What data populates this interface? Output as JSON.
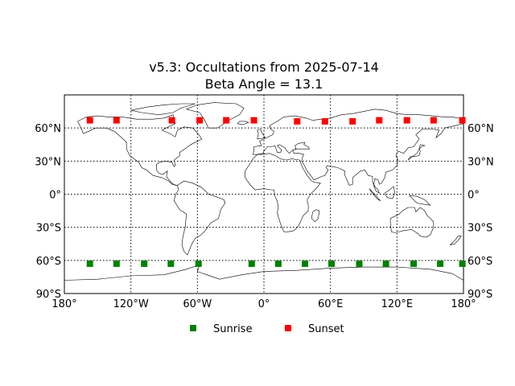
{
  "chart_data": {
    "type": "scatter",
    "title": "v5.3: Occultations from 2025-07-14",
    "subtitle": "Beta Angle = 13.1",
    "xlabel": "",
    "ylabel": "",
    "xlim": [
      -180,
      180
    ],
    "ylim": [
      -90,
      90
    ],
    "grid": true,
    "legend_position": "bottom-center",
    "map_projection": "equirectangular",
    "x_ticks": [
      {
        "value": -180,
        "label": "180°"
      },
      {
        "value": -120,
        "label": "120°W"
      },
      {
        "value": -60,
        "label": "60°W"
      },
      {
        "value": 0,
        "label": "0°"
      },
      {
        "value": 60,
        "label": "60°E"
      },
      {
        "value": 120,
        "label": "120°E"
      },
      {
        "value": 180,
        "label": "180°"
      }
    ],
    "y_ticks": [
      {
        "value": 60,
        "label": "60°N"
      },
      {
        "value": 30,
        "label": "30°N"
      },
      {
        "value": 0,
        "label": "0°"
      },
      {
        "value": -30,
        "label": "30°S"
      },
      {
        "value": -60,
        "label": "60°S"
      },
      {
        "value": -90,
        "label": "90°S"
      }
    ],
    "series": [
      {
        "name": "Sunrise",
        "color": "#008000",
        "marker": "square",
        "x": [
          -157,
          -133,
          -108,
          -84,
          -59,
          -11,
          13,
          37,
          61,
          86,
          110,
          135,
          159,
          179
        ],
        "y": [
          -63,
          -63,
          -63,
          -63,
          -63,
          -63,
          -63,
          -63,
          -63,
          -63,
          -63,
          -63,
          -63,
          -63
        ]
      },
      {
        "name": "Sunset",
        "color": "#ff0000",
        "marker": "square",
        "x": [
          -157,
          -133,
          -83,
          -58,
          -34,
          -9,
          30,
          55,
          80,
          104,
          129,
          153,
          179
        ],
        "y": [
          67,
          67,
          67,
          67,
          67,
          67,
          66,
          66,
          66,
          67,
          67,
          67,
          67
        ]
      }
    ]
  }
}
